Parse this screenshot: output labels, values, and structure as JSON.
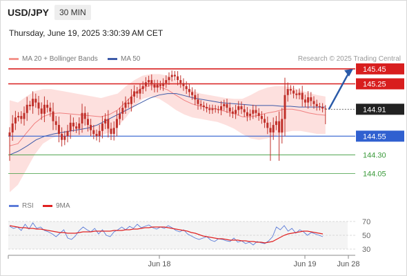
{
  "header": {
    "symbol": "USD/JPY",
    "timeframe": "30 MIN",
    "datetime": "Thursday, June 19, 2025 3:30:39 AM CET",
    "copyright": "Research © 2025 Trading Central"
  },
  "legend": {
    "bollinger_label": "MA 20 + Bollinger Bands",
    "ma50_label": "MA 50",
    "rsi_label": "RSI",
    "rsi_ma_label": "9MA"
  },
  "colors": {
    "candle": "#c0302a",
    "bollinger_fill": "#fde0de",
    "ma20": "#f08080",
    "ma50": "#3d5aa8",
    "resistance": "#d81e1e",
    "support": "#3060d0",
    "target": "#3a9a3a",
    "arrow": "#2a5aa8",
    "rsi": "#5b7bd8",
    "rsi_ma": "#e02020"
  },
  "chart_data": [
    {
      "type": "candlestick",
      "title": "USD/JPY 30 MIN",
      "ylim": [
        143.75,
        145.55
      ],
      "x_labels": [
        "Jun 18",
        "Jun 19",
        "Jun 28"
      ],
      "last_price": 144.91,
      "levels": [
        {
          "value": 145.45,
          "label": "145.45",
          "kind": "resistance"
        },
        {
          "value": 145.25,
          "label": "145.25",
          "kind": "resistance"
        },
        {
          "value": 144.55,
          "label": "144.55",
          "kind": "support"
        },
        {
          "value": 144.3,
          "label": "144.30",
          "kind": "target"
        },
        {
          "value": 144.05,
          "label": "144.05",
          "kind": "target"
        }
      ],
      "forecast_arrow": {
        "from": 144.91,
        "to": 145.45
      },
      "close": [
        144.6,
        144.72,
        144.8,
        144.82,
        144.78,
        144.86,
        144.97,
        144.95,
        145.05,
        145.0,
        144.92,
        144.85,
        144.97,
        144.93,
        144.88,
        144.75,
        144.7,
        144.58,
        144.5,
        144.55,
        144.62,
        144.73,
        144.68,
        144.65,
        144.72,
        144.86,
        144.78,
        144.7,
        144.63,
        144.58,
        144.55,
        144.62,
        144.72,
        144.78,
        144.65,
        144.58,
        144.66,
        144.78,
        144.85,
        144.93,
        145.0,
        144.98,
        145.08,
        145.15,
        145.12,
        145.18,
        145.22,
        145.27,
        145.3,
        145.24,
        145.2,
        145.24,
        145.22,
        145.26,
        145.3,
        145.34,
        145.37,
        145.35,
        145.3,
        145.26,
        145.22,
        145.18,
        145.14,
        145.1,
        145.04,
        144.98,
        144.96,
        144.94,
        144.92,
        144.9,
        144.92,
        144.91,
        144.9,
        144.95,
        144.98,
        144.93,
        144.88,
        144.85,
        144.9,
        144.95,
        144.91,
        144.87,
        144.82,
        144.85,
        144.9,
        144.86,
        144.82,
        144.78,
        144.73,
        144.66,
        144.6,
        144.7,
        144.75,
        144.6,
        144.78,
        145.1,
        145.18,
        145.16,
        145.12,
        145.1,
        145.13,
        145.04,
        145.0,
        145.07,
        145.02,
        144.98,
        144.95,
        144.94,
        144.92,
        144.91
      ],
      "bollinger_upper": [
        145.03,
        145.0,
        145.08,
        145.15,
        145.18,
        145.18,
        145.16,
        145.14,
        145.12,
        145.1,
        145.08,
        145.06,
        145.09,
        145.12,
        145.22,
        145.3,
        145.36,
        145.38,
        145.38,
        145.36,
        145.3,
        145.22,
        145.16,
        145.12,
        145.1,
        145.08,
        145.06,
        145.05,
        145.05,
        145.1,
        145.16,
        145.2,
        145.22,
        145.22,
        145.2,
        145.16,
        145.13,
        145.1,
        145.08
      ],
      "bollinger_lower": [
        143.8,
        143.9,
        144.1,
        144.3,
        144.45,
        144.52,
        144.56,
        144.55,
        144.55,
        144.56,
        144.56,
        144.56,
        144.6,
        144.68,
        144.8,
        144.95,
        145.05,
        145.08,
        145.05,
        144.98,
        144.9,
        144.84,
        144.8,
        144.78,
        144.76,
        144.74,
        144.7,
        144.65,
        144.58,
        144.52,
        144.5,
        144.52,
        144.55,
        144.6,
        144.62,
        144.62,
        144.6,
        144.58,
        144.58
      ],
      "ma20": [
        144.42,
        144.45,
        144.59,
        144.72,
        144.81,
        144.85,
        144.86,
        144.85,
        144.84,
        144.83,
        144.82,
        144.81,
        144.84,
        144.9,
        145.01,
        145.12,
        145.2,
        145.23,
        145.21,
        145.17,
        145.1,
        145.03,
        144.98,
        144.95,
        144.93,
        144.91,
        144.88,
        144.85,
        144.81,
        144.81,
        144.83,
        144.86,
        144.88,
        144.91,
        144.91,
        144.89,
        144.86,
        144.84,
        144.83
      ],
      "ma50": [
        144.3,
        144.35,
        144.42,
        144.5,
        144.55,
        144.58,
        144.6,
        144.62,
        144.64,
        144.66,
        144.7,
        144.76,
        144.82,
        144.88,
        144.94,
        145.0,
        145.06,
        145.1,
        145.12,
        145.12,
        145.09,
        145.06,
        145.04,
        145.02,
        145.0,
        144.99,
        144.98,
        144.97,
        144.96,
        144.96,
        144.96,
        144.95,
        144.95,
        144.94,
        144.94,
        144.94,
        144.94
      ]
    },
    {
      "type": "line",
      "title": "RSI",
      "ylim": [
        25,
        78
      ],
      "y_ticks": [
        "70",
        "50",
        "30"
      ],
      "series": [
        {
          "name": "RSI",
          "values": [
            63,
            60,
            62,
            57,
            66,
            59,
            68,
            60,
            62,
            57,
            55,
            52,
            48,
            53,
            58,
            46,
            44,
            49,
            57,
            62,
            58,
            55,
            60,
            52,
            58,
            50,
            48,
            55,
            58,
            62,
            58,
            63,
            60,
            66,
            61,
            63,
            65,
            61,
            59,
            62,
            60,
            64,
            61,
            57,
            55,
            58,
            52,
            49,
            46,
            44,
            46,
            48,
            43,
            41,
            45,
            44,
            42,
            41,
            46,
            40,
            42,
            38,
            40,
            36,
            41,
            39,
            38,
            42,
            48,
            62,
            58,
            64,
            56,
            60,
            53,
            58,
            55,
            50,
            54,
            52,
            50,
            48
          ]
        },
        {
          "name": "9MA",
          "values": [
            64,
            63,
            62,
            61,
            61,
            60,
            60,
            59,
            59,
            58,
            57,
            56,
            55,
            54,
            54,
            53,
            53,
            53,
            54,
            55,
            55,
            55,
            56,
            56,
            56,
            56,
            56,
            57,
            57,
            57,
            58,
            58,
            59,
            59,
            60,
            61,
            61,
            62,
            62,
            62,
            62,
            61,
            60,
            59,
            58,
            57,
            56,
            54,
            53,
            51,
            49,
            48,
            47,
            46,
            45,
            45,
            44,
            43,
            43,
            43,
            42,
            42,
            41,
            41,
            40,
            40,
            39,
            40,
            41,
            44,
            47,
            50,
            52,
            53,
            54,
            55,
            56,
            56,
            55,
            54,
            53,
            52
          ]
        }
      ]
    }
  ]
}
